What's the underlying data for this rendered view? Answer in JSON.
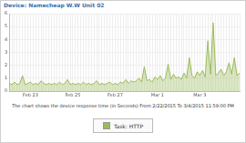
{
  "chart_data": {
    "type": "line",
    "title": "Device: Namecheap W.W Unit 02",
    "subtitle": "The chart shows the device response time (in Seconds) From 2/22/2015 To 3/4/2015 11:59:00 PM",
    "categories": [
      null,
      null,
      null,
      null,
      null,
      null,
      null,
      null,
      "Feb 23",
      null,
      null,
      null,
      null,
      null,
      null,
      null,
      null,
      null,
      null,
      null,
      null,
      null,
      null,
      null,
      "Feb 25",
      null,
      null,
      null,
      null,
      null,
      null,
      null,
      null,
      null,
      null,
      null,
      null,
      null,
      null,
      null,
      "Feb 27",
      null,
      null,
      null,
      null,
      null,
      null,
      null,
      null,
      null,
      null,
      null,
      null,
      null,
      null,
      null,
      "Mar 1",
      null,
      null,
      null,
      null,
      null,
      null,
      null,
      null,
      null,
      null,
      null,
      null,
      null,
      null,
      null,
      "Mar 3",
      null,
      null,
      null,
      null,
      null,
      null,
      null,
      null,
      null,
      null,
      null,
      null,
      null,
      null,
      null
    ],
    "series": [
      {
        "name": "Task: HTTP",
        "color": "#9bbb59",
        "values": [
          0.6,
          0.5,
          0.7,
          0.5,
          0.6,
          1.2,
          0.5,
          0.6,
          0.7,
          0.5,
          0.6,
          0.5,
          0.8,
          0.6,
          0.5,
          0.6,
          0.5,
          0.6,
          0.5,
          0.7,
          0.5,
          0.6,
          0.9,
          0.5,
          0.6,
          0.5,
          0.6,
          0.5,
          0.7,
          0.5,
          0.6,
          0.5,
          0.6,
          0.8,
          0.5,
          0.6,
          0.5,
          0.6,
          0.7,
          0.5,
          0.6,
          0.5,
          0.7,
          0.6,
          0.9,
          0.6,
          0.8,
          0.7,
          0.8,
          1.0,
          0.7,
          1.9,
          0.8,
          0.9,
          0.7,
          1.1,
          0.9,
          1.2,
          0.8,
          1.0,
          2.1,
          0.9,
          1.3,
          1.0,
          1.1,
          0.9,
          1.4,
          1.0,
          2.6,
          1.2,
          1.0,
          1.5,
          1.2,
          1.6,
          1.1,
          3.9,
          1.3,
          5.3,
          1.2,
          1.4,
          1.7,
          1.2,
          1.5,
          2.2,
          1.3,
          2.6,
          1.2,
          1.4
        ]
      }
    ],
    "ylim": [
      0,
      6
    ],
    "yticks": [
      0,
      1,
      2,
      3,
      4,
      5,
      6
    ],
    "grid": true,
    "legend": "bottom"
  }
}
